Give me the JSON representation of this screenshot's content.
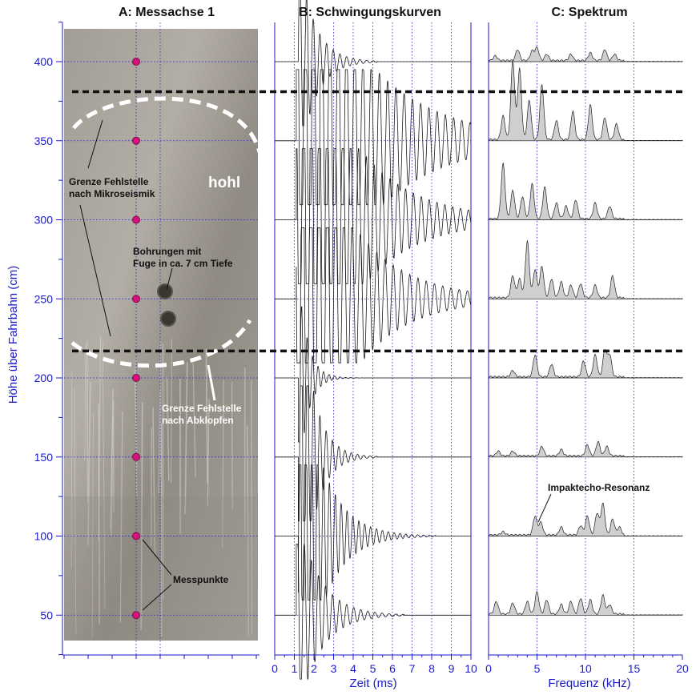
{
  "figure": {
    "panel_a_title": "A: Messachse 1",
    "panel_b_title": "B: Schwingungskurven",
    "panel_c_title": "C: Spektrum"
  },
  "colors": {
    "axis_blue": "#1a1acc",
    "measure_point": "#d4147a",
    "photo_bg": "#9a958c",
    "spectrum_fill": "#cfcfcf"
  },
  "annotations": {
    "grenze_mikro_1": "Grenze Fehlstelle",
    "grenze_mikro_2": "nach Mikroseismik",
    "hohl": "hohl",
    "bohrungen_1": "Bohrungen mit",
    "bohrungen_2": "Fuge in ca. 7 cm Tiefe",
    "grenze_abklopfen_1": "Grenze Fehlstelle",
    "grenze_abklopfen_2": "nach Abklopfen",
    "messpunkte": "Messpunkte",
    "impaktecho": "Impaktecho-Resonanz"
  },
  "chart_data": [
    {
      "type": "scatter",
      "title": "A: Messachse 1",
      "ylabel": "Höhe über Fahrbahn (cm)",
      "ylim": [
        20,
        420
      ],
      "yticks": [
        50,
        100,
        150,
        200,
        250,
        300,
        350,
        400
      ],
      "points_cm": [
        50,
        100,
        150,
        200,
        250,
        300,
        350,
        400
      ],
      "boundary_mikroseismik_cm": [
        217,
        381
      ],
      "grid": true
    },
    {
      "type": "line",
      "title": "B: Schwingungskurven",
      "xlabel": "Zeit (ms)",
      "xlim": [
        0,
        10
      ],
      "xticks": [
        0,
        1,
        2,
        3,
        4,
        5,
        6,
        7,
        8,
        9,
        10
      ],
      "traces": [
        {
          "height_cm": 400,
          "onset_ms": 1.2,
          "duration_ms": 4,
          "period_ms": 0.34,
          "amp_cm": 22,
          "decay_ms": 0.8
        },
        {
          "height_cm": 350,
          "onset_ms": 1.1,
          "duration_ms": 8.9,
          "period_ms": 0.42,
          "amp_cm": 45,
          "decay_ms": 3.5
        },
        {
          "height_cm": 300,
          "onset_ms": 1.1,
          "duration_ms": 8.9,
          "period_ms": 0.4,
          "amp_cm": 45,
          "decay_ms": 2.8
        },
        {
          "height_cm": 250,
          "onset_ms": 1.1,
          "duration_ms": 8.9,
          "period_ms": 0.42,
          "amp_cm": 45,
          "decay_ms": 2.6
        },
        {
          "height_cm": 200,
          "onset_ms": 1.2,
          "duration_ms": 3.5,
          "period_ms": 0.28,
          "amp_cm": 22,
          "decay_ms": 0.45
        },
        {
          "height_cm": 150,
          "onset_ms": 1.2,
          "duration_ms": 4,
          "period_ms": 0.32,
          "amp_cm": 40,
          "decay_ms": 0.7
        },
        {
          "height_cm": 100,
          "onset_ms": 1.2,
          "duration_ms": 7,
          "period_ms": 0.3,
          "amp_cm": 40,
          "decay_ms": 1.2
        },
        {
          "height_cm": 50,
          "onset_ms": 1.1,
          "duration_ms": 5.5,
          "period_ms": 0.36,
          "amp_cm": 22,
          "decay_ms": 1.1
        }
      ],
      "grid": true
    },
    {
      "type": "area",
      "title": "C: Spektrum",
      "xlabel": "Frequenz (kHz)",
      "xlim": [
        0,
        20
      ],
      "xticks": [
        0,
        5,
        10,
        15,
        20
      ],
      "annotation": "Impaktecho-Resonanz",
      "spectra": [
        {
          "height_cm": 400,
          "peaks": [
            [
              0.7,
              3
            ],
            [
              3,
              7
            ],
            [
              4.5,
              6
            ],
            [
              5,
              8
            ],
            [
              6,
              4
            ],
            [
              8.5,
              4
            ],
            [
              10.5,
              5
            ],
            [
              12,
              7
            ],
            [
              13,
              4
            ]
          ]
        },
        {
          "height_cm": 350,
          "peaks": [
            [
              1.5,
              15
            ],
            [
              2.5,
              50
            ],
            [
              3.2,
              45
            ],
            [
              4.2,
              25
            ],
            [
              5.5,
              35
            ],
            [
              7,
              12
            ],
            [
              8.7,
              18
            ],
            [
              10.5,
              22
            ],
            [
              12,
              14
            ],
            [
              13.2,
              10
            ]
          ]
        },
        {
          "height_cm": 300,
          "peaks": [
            [
              1.5,
              35
            ],
            [
              2.5,
              18
            ],
            [
              3.5,
              14
            ],
            [
              4.5,
              22
            ],
            [
              5.8,
              20
            ],
            [
              7,
              10
            ],
            [
              8,
              8
            ],
            [
              9,
              12
            ],
            [
              11,
              10
            ],
            [
              12.5,
              8
            ]
          ]
        },
        {
          "height_cm": 250,
          "peaks": [
            [
              2.5,
              14
            ],
            [
              3.2,
              12
            ],
            [
              4,
              36
            ],
            [
              4.8,
              18
            ],
            [
              5.5,
              20
            ],
            [
              6.5,
              12
            ],
            [
              7.5,
              10
            ],
            [
              8.5,
              8
            ],
            [
              9.5,
              9
            ],
            [
              11,
              8
            ],
            [
              12.8,
              14
            ]
          ]
        },
        {
          "height_cm": 200,
          "peaks": [
            [
              2.5,
              4
            ],
            [
              4.8,
              14
            ],
            [
              6.5,
              8
            ],
            [
              9.8,
              10
            ],
            [
              11,
              14
            ],
            [
              12,
              17
            ],
            [
              12.5,
              14
            ]
          ]
        },
        {
          "height_cm": 150,
          "peaks": [
            [
              1,
              3
            ],
            [
              2.5,
              3
            ],
            [
              5.5,
              6
            ],
            [
              7.5,
              4
            ],
            [
              10.2,
              7
            ],
            [
              11.3,
              9
            ],
            [
              12.2,
              6
            ]
          ]
        },
        {
          "height_cm": 100,
          "peaks": [
            [
              1.5,
              2
            ],
            [
              4.8,
              12
            ],
            [
              5.4,
              8
            ],
            [
              7.5,
              5
            ],
            [
              9.5,
              6
            ],
            [
              10.2,
              12
            ],
            [
              11.2,
              14
            ],
            [
              11.8,
              20
            ],
            [
              12.8,
              10
            ],
            [
              13.5,
              5
            ]
          ]
        },
        {
          "height_cm": 50,
          "peaks": [
            [
              0.8,
              8
            ],
            [
              2.5,
              7
            ],
            [
              4,
              8
            ],
            [
              5,
              14
            ],
            [
              6,
              9
            ],
            [
              7.5,
              6
            ],
            [
              8.5,
              8
            ],
            [
              9.5,
              10
            ],
            [
              10.5,
              9
            ],
            [
              11.8,
              12
            ],
            [
              12.5,
              6
            ]
          ]
        }
      ],
      "grid": true
    }
  ]
}
